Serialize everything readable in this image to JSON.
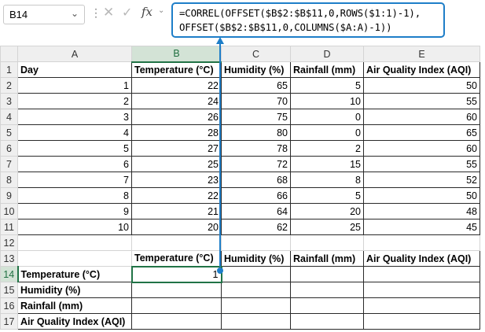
{
  "name_box": {
    "value": "B14",
    "dropdown_icon": "chevron-down-icon"
  },
  "formula_bar": {
    "fx_label": "fx",
    "line1": "=CORREL(OFFSET($B$2:$B$11,0,ROWS($1:1)-1),",
    "line2": "OFFSET($B$2:$B$11,0,COLUMNS($A:A)-1))"
  },
  "columns": [
    "A",
    "B",
    "C",
    "D",
    "E"
  ],
  "rows": [
    "1",
    "2",
    "3",
    "4",
    "5",
    "6",
    "7",
    "8",
    "9",
    "10",
    "11",
    "12",
    "13",
    "14",
    "15",
    "16",
    "17"
  ],
  "table1": {
    "headers": [
      "Day",
      "Temperature (°C)",
      "Humidity (%)",
      "Rainfall (mm)",
      "Air Quality Index (AQI)"
    ],
    "data": [
      [
        "1",
        "22",
        "65",
        "5",
        "50"
      ],
      [
        "2",
        "24",
        "70",
        "10",
        "55"
      ],
      [
        "3",
        "26",
        "75",
        "0",
        "60"
      ],
      [
        "4",
        "28",
        "80",
        "0",
        "65"
      ],
      [
        "5",
        "27",
        "78",
        "2",
        "60"
      ],
      [
        "6",
        "25",
        "72",
        "15",
        "55"
      ],
      [
        "7",
        "23",
        "68",
        "8",
        "52"
      ],
      [
        "8",
        "22",
        "66",
        "5",
        "50"
      ],
      [
        "9",
        "21",
        "64",
        "20",
        "48"
      ],
      [
        "10",
        "20",
        "62",
        "25",
        "45"
      ]
    ]
  },
  "table2": {
    "col_headers": [
      "Temperature (°C)",
      "Humidity (%)",
      "Rainfall (mm)",
      "Air Quality Index (AQI)"
    ],
    "row_headers": [
      "Temperature (°C)",
      "Humidity (%)",
      "Rainfall (mm)",
      "Air Quality Index (AQI)"
    ],
    "b14_value": "1"
  },
  "colors": {
    "accent": "#1e7ec8",
    "selection": "#217346"
  }
}
